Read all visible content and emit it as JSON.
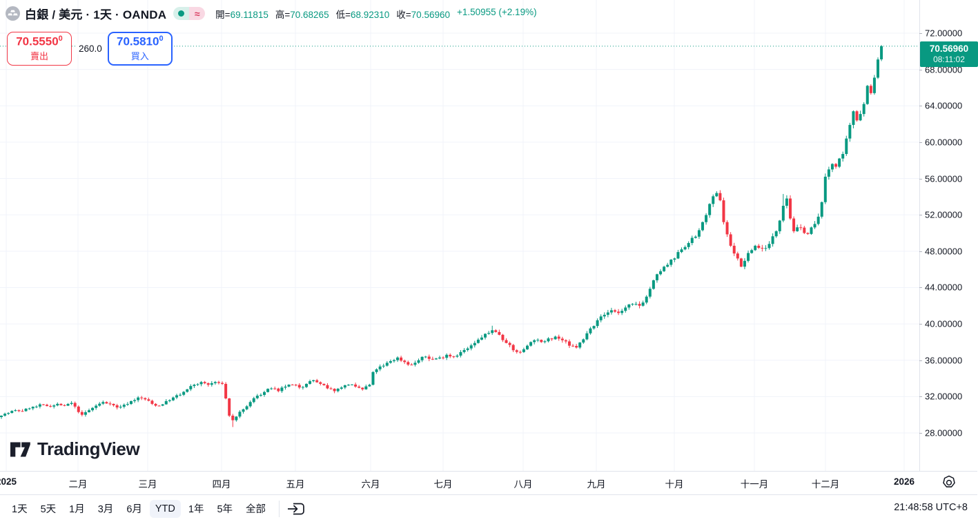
{
  "header": {
    "symbol_title": "白銀 / 美元 · 1天 · OANDA",
    "market_status": "open",
    "approx_symbol": "≈",
    "ohlc": [
      {
        "label": "開",
        "value": "69.11815"
      },
      {
        "label": "高",
        "value": "70.68265"
      },
      {
        "label": "低",
        "value": "68.92310"
      },
      {
        "label": "收",
        "value": "70.56960"
      }
    ],
    "change": "+1.50955 (+2.19%)"
  },
  "trade_panel": {
    "sell": {
      "price": "70.5550",
      "sup": "0",
      "label": "賣出"
    },
    "buy": {
      "price": "70.5810",
      "sup": "0",
      "label": "買入"
    },
    "spread": "260.0"
  },
  "price_badge": {
    "price": "70.56960",
    "countdown": "08:11:02",
    "value": 70.5696
  },
  "watermark_text": "TradingView",
  "toolbar": {
    "ranges": [
      "1天",
      "5天",
      "1月",
      "3月",
      "6月",
      "YTD",
      "1年",
      "5年",
      "全部"
    ],
    "active_range": "YTD",
    "clock": "21:48:58 UTC+8"
  },
  "colors": {
    "up": "#089981",
    "down": "#f23645",
    "buy_blue": "#2962ff",
    "sell_red": "#f23645",
    "grid": "#f0f3fa",
    "axis_border": "#e0e3eb",
    "text": "#131722",
    "badge_bg": "#089981"
  },
  "chart_data": {
    "type": "candlestick",
    "title": "白銀 / 美元 · 1天 · OANDA",
    "instrument": "白銀 / 美元",
    "interval": "1天",
    "exchange": "OANDA",
    "current_price": 70.5696,
    "last_candle": {
      "open": 69.11815,
      "high": 70.68265,
      "low": 68.9231,
      "close": 70.5696
    },
    "change_abs": 1.50955,
    "change_pct": 2.19,
    "y_ticks": [
      72,
      68,
      64,
      60,
      56,
      52,
      48,
      44,
      40,
      36,
      32,
      28
    ],
    "y_tick_decimals": 5,
    "price_map": {
      "price_top": 72,
      "y_top": 48,
      "price_bottom": 28,
      "y_bottom": 627
    },
    "x_labels": [
      {
        "t": "2025",
        "x": 9,
        "b": 1
      },
      {
        "t": "二月",
        "x": 113,
        "b": 0
      },
      {
        "t": "三月",
        "x": 214,
        "b": 0
      },
      {
        "t": "四月",
        "x": 321,
        "b": 0
      },
      {
        "t": "五月",
        "x": 428,
        "b": 0
      },
      {
        "t": "六月",
        "x": 537,
        "b": 0
      },
      {
        "t": "七月",
        "x": 642,
        "b": 0
      },
      {
        "t": "八月",
        "x": 758,
        "b": 0
      },
      {
        "t": "九月",
        "x": 864,
        "b": 0
      },
      {
        "t": "十月",
        "x": 977,
        "b": 0
      },
      {
        "t": "十一月",
        "x": 1093,
        "b": 0
      },
      {
        "t": "十二月",
        "x": 1196,
        "b": 0
      },
      {
        "t": "2026",
        "x": 1310,
        "b": 1
      }
    ],
    "candles_count": 252,
    "candle_start_x": 2,
    "candle_spacing": 5.08,
    "anchors": [
      [
        0,
        29.9
      ],
      [
        2,
        30.2
      ],
      [
        4,
        30.5
      ],
      [
        6,
        30.4
      ],
      [
        8,
        30.7
      ],
      [
        10,
        30.9
      ],
      [
        12,
        31.1
      ],
      [
        14,
        30.9
      ],
      [
        16,
        31.2
      ],
      [
        18,
        31.0
      ],
      [
        20,
        31.3
      ],
      [
        21,
        30.9
      ],
      [
        22,
        30.3
      ],
      [
        23,
        30.0
      ],
      [
        25,
        30.5
      ],
      [
        27,
        31.0
      ],
      [
        29,
        31.4
      ],
      [
        31,
        31.2
      ],
      [
        33,
        30.8
      ],
      [
        35,
        31.1
      ],
      [
        37,
        31.5
      ],
      [
        39,
        31.9
      ],
      [
        41,
        31.7
      ],
      [
        43,
        31.2
      ],
      [
        45,
        31.0
      ],
      [
        47,
        31.5
      ],
      [
        49,
        31.9
      ],
      [
        51,
        32.2
      ],
      [
        53,
        32.8
      ],
      [
        55,
        33.3
      ],
      [
        57,
        33.6
      ],
      [
        59,
        33.3
      ],
      [
        61,
        33.6
      ],
      [
        62,
        33.5
      ],
      [
        63,
        33.4
      ],
      [
        64,
        31.8
      ],
      [
        65,
        29.9
      ],
      [
        66,
        29.4
      ],
      [
        67,
        29.8
      ],
      [
        69,
        30.6
      ],
      [
        71,
        31.4
      ],
      [
        73,
        32.1
      ],
      [
        75,
        32.5
      ],
      [
        77,
        32.9
      ],
      [
        79,
        32.6
      ],
      [
        81,
        33.1
      ],
      [
        83,
        33.3
      ],
      [
        85,
        33.0
      ],
      [
        87,
        33.4
      ],
      [
        89,
        33.8
      ],
      [
        91,
        33.4
      ],
      [
        93,
        32.9
      ],
      [
        95,
        32.6
      ],
      [
        97,
        33.0
      ],
      [
        99,
        33.3
      ],
      [
        101,
        33.1
      ],
      [
        103,
        32.8
      ],
      [
        105,
        33.3
      ],
      [
        106,
        34.7
      ],
      [
        107,
        35.0
      ],
      [
        109,
        35.4
      ],
      [
        111,
        35.9
      ],
      [
        113,
        36.3
      ],
      [
        115,
        35.8
      ],
      [
        117,
        35.5
      ],
      [
        119,
        36.0
      ],
      [
        121,
        36.4
      ],
      [
        123,
        36.1
      ],
      [
        125,
        36.3
      ],
      [
        127,
        36.6
      ],
      [
        129,
        36.4
      ],
      [
        131,
        36.9
      ],
      [
        133,
        37.3
      ],
      [
        135,
        37.9
      ],
      [
        137,
        38.5
      ],
      [
        139,
        39.0
      ],
      [
        140,
        39.3
      ],
      [
        142,
        38.8
      ],
      [
        144,
        37.9
      ],
      [
        146,
        37.1
      ],
      [
        148,
        36.9
      ],
      [
        150,
        37.6
      ],
      [
        152,
        38.2
      ],
      [
        154,
        38.0
      ],
      [
        156,
        38.4
      ],
      [
        158,
        38.6
      ],
      [
        160,
        38.2
      ],
      [
        162,
        37.6
      ],
      [
        164,
        37.4
      ],
      [
        166,
        38.3
      ],
      [
        168,
        39.5
      ],
      [
        170,
        40.4
      ],
      [
        172,
        41.0
      ],
      [
        174,
        41.5
      ],
      [
        176,
        41.2
      ],
      [
        178,
        41.8
      ],
      [
        180,
        42.2
      ],
      [
        182,
        42.0
      ],
      [
        184,
        43.0
      ],
      [
        186,
        44.8
      ],
      [
        188,
        45.8
      ],
      [
        190,
        46.5
      ],
      [
        192,
        47.2
      ],
      [
        194,
        48.2
      ],
      [
        196,
        48.9
      ],
      [
        198,
        49.6
      ],
      [
        200,
        51.2
      ],
      [
        202,
        53.2
      ],
      [
        204,
        54.4
      ],
      [
        205,
        53.6
      ],
      [
        206,
        51.2
      ],
      [
        208,
        48.6
      ],
      [
        210,
        47.2
      ],
      [
        211,
        46.3
      ],
      [
        213,
        47.8
      ],
      [
        215,
        48.6
      ],
      [
        217,
        48.3
      ],
      [
        219,
        48.8
      ],
      [
        221,
        50.2
      ],
      [
        223,
        53.0
      ],
      [
        224,
        53.8
      ],
      [
        225,
        51.6
      ],
      [
        226,
        50.2
      ],
      [
        228,
        50.6
      ],
      [
        230,
        49.9
      ],
      [
        232,
        51.0
      ],
      [
        233,
        51.8
      ],
      [
        234,
        53.4
      ],
      [
        235,
        56.2
      ],
      [
        236,
        57.0
      ],
      [
        237,
        57.6
      ],
      [
        238,
        57.3
      ],
      [
        239,
        58.2
      ],
      [
        240,
        58.7
      ],
      [
        241,
        60.4
      ],
      [
        242,
        61.9
      ],
      [
        243,
        63.4
      ],
      [
        244,
        62.4
      ],
      [
        245,
        63.1
      ],
      [
        246,
        64.2
      ],
      [
        247,
        66.2
      ],
      [
        248,
        65.4
      ],
      [
        249,
        67.1
      ],
      [
        250,
        69.1
      ],
      [
        251,
        70.5696
      ]
    ],
    "wick_high_overrides": {
      "140": 39.8,
      "204": 54.6,
      "223": 54.3
    },
    "wick_low_overrides": {
      "66": 28.65
    }
  }
}
